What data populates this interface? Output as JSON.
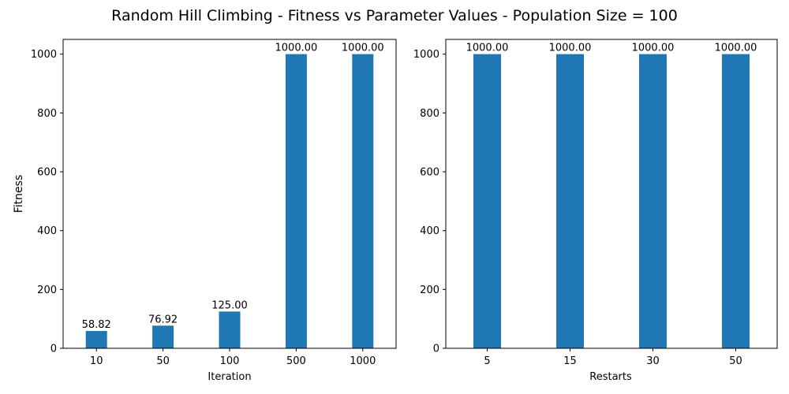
{
  "suptitle": "Random Hill Climbing - Fitness vs Parameter Values - Population Size = 100",
  "bar_color": "#1f77b4",
  "chart_data": [
    {
      "type": "bar",
      "categories": [
        "10",
        "50",
        "100",
        "500",
        "1000"
      ],
      "values": [
        58.82,
        76.92,
        125.0,
        1000.0,
        1000.0
      ],
      "data_labels": [
        "58.82",
        "76.92",
        "125.00",
        "1000.00",
        "1000.00"
      ],
      "title": "",
      "xlabel": "Iteration",
      "ylabel": "Fitness",
      "ylim": [
        0,
        1050
      ],
      "yticks": [
        0,
        200,
        400,
        600,
        800,
        1000
      ],
      "grid": false,
      "legend": "none"
    },
    {
      "type": "bar",
      "categories": [
        "5",
        "15",
        "30",
        "50"
      ],
      "values": [
        1000.0,
        1000.0,
        1000.0,
        1000.0
      ],
      "data_labels": [
        "1000.00",
        "1000.00",
        "1000.00",
        "1000.00"
      ],
      "title": "",
      "xlabel": "Restarts",
      "ylabel": "",
      "ylim": [
        0,
        1050
      ],
      "yticks": [
        0,
        200,
        400,
        600,
        800,
        1000
      ],
      "grid": false,
      "legend": "none"
    }
  ]
}
